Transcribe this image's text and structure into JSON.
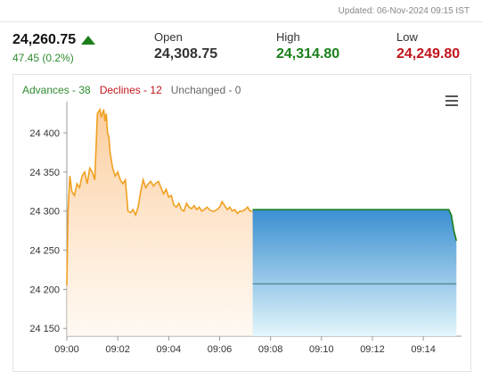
{
  "updated_text": "Updated: 06-Nov-2024 09:15 IST",
  "quote": {
    "price": "24,260.75",
    "change": "47.45 (0.2%)",
    "open_label": "Open",
    "open_value": "24,308.75",
    "high_label": "High",
    "high_value": "24,314.80",
    "low_label": "Low",
    "low_value": "24,249.80"
  },
  "legend": {
    "advances": "Advances - 38",
    "declines": "Declines - 12",
    "unchanged": "Unchanged - 0"
  },
  "colors": {
    "up": "#1a7f1a",
    "down": "#c0141b",
    "line": "#f0a020",
    "projection": "#3a8fd0"
  },
  "chart_data": {
    "type": "area",
    "x_tick_labels": [
      "09:00",
      "09:02",
      "09:04",
      "09:06",
      "09:08",
      "09:10",
      "09:12",
      "09:14"
    ],
    "y_tick_labels": [
      "24 150",
      "24 200",
      "24 250",
      "24 300",
      "24 350",
      "24 400"
    ],
    "xlim": [
      0,
      15.5
    ],
    "ylim": [
      24140,
      24440
    ],
    "ytick_values": [
      24150,
      24200,
      24250,
      24300,
      24350,
      24400
    ],
    "xtick_values": [
      0,
      2,
      4,
      6,
      8,
      10,
      12,
      14
    ],
    "series": [
      {
        "x": [
          0.0,
          0.05,
          0.12,
          0.2,
          0.3,
          0.4,
          0.5,
          0.6,
          0.7,
          0.8,
          0.9,
          1.0,
          1.1,
          1.2,
          1.3,
          1.35,
          1.4,
          1.45,
          1.5,
          1.55,
          1.6,
          1.65,
          1.7,
          1.75,
          1.8,
          1.9,
          2.0,
          2.1,
          2.2,
          2.3,
          2.4,
          2.5,
          2.6,
          2.7,
          2.8,
          2.9,
          3.0,
          3.1,
          3.2,
          3.3,
          3.4,
          3.5,
          3.6,
          3.7,
          3.8,
          3.9,
          4.0,
          4.1,
          4.2,
          4.3,
          4.4,
          4.5,
          4.6,
          4.7,
          4.8,
          4.9,
          5.0,
          5.1,
          5.2,
          5.3,
          5.4,
          5.5,
          5.6,
          5.7,
          5.8,
          5.9,
          6.0,
          6.1,
          6.2,
          6.3,
          6.4,
          6.5,
          6.6,
          6.7,
          6.8,
          6.9,
          7.0,
          7.1,
          7.2,
          7.3
        ],
        "y": [
          24205,
          24300,
          24345,
          24325,
          24320,
          24335,
          24330,
          24345,
          24350,
          24335,
          24355,
          24350,
          24340,
          24425,
          24430,
          24420,
          24425,
          24430,
          24415,
          24425,
          24400,
          24395,
          24375,
          24365,
          24355,
          24345,
          24350,
          24340,
          24335,
          24340,
          24300,
          24298,
          24302,
          24295,
          24305,
          24325,
          24340,
          24330,
          24335,
          24338,
          24332,
          24336,
          24338,
          24330,
          24322,
          24328,
          24318,
          24320,
          24308,
          24305,
          24310,
          24302,
          24300,
          24310,
          24305,
          24303,
          24307,
          24302,
          24305,
          24300,
          24302,
          24305,
          24302,
          24300,
          24300,
          24302,
          24305,
          24312,
          24307,
          24302,
          24305,
          24300,
          24302,
          24297,
          24300,
          24300,
          24302,
          24305,
          24300,
          24300
        ]
      },
      {
        "x": [
          7.3,
          15.0,
          15.1,
          15.2,
          15.3
        ],
        "y": [
          24302,
          24302,
          24295,
          24275,
          24262
        ]
      }
    ],
    "reference_y": 24207,
    "grid": false
  }
}
